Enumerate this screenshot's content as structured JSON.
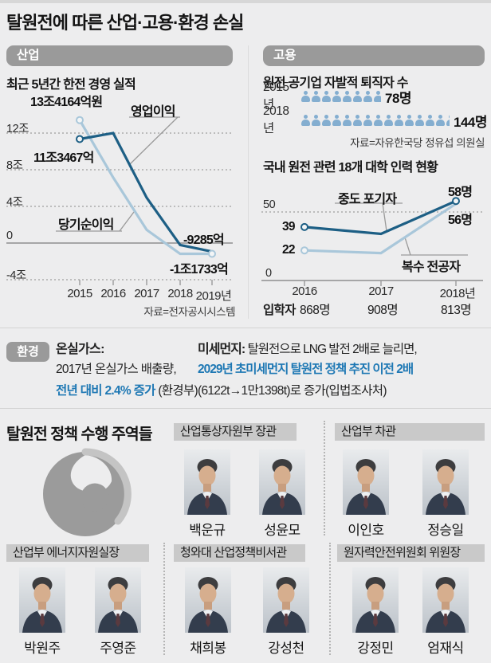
{
  "page": {
    "title": "탈원전에 따른 산업·고용·환경 손실"
  },
  "colors": {
    "accent_blue": "#1e78b4",
    "line_dark": "#1d5f85",
    "line_light": "#a9c7da",
    "pictogram_blue": "#84aed0",
    "section_bar_gray": "#9a9a9a"
  },
  "industry": {
    "section_label": "산업",
    "chart_title": "최근 5년간 한전 경영 실적",
    "y_labels": [
      "12조",
      "8조",
      "4조",
      "0",
      "-4조"
    ],
    "x_labels": [
      "2015",
      "2016",
      "2017",
      "2018",
      "2019년"
    ],
    "annotations": {
      "net_2015": "13조4164억원",
      "op_2015": "11조3467억",
      "op_label": "영업이익",
      "net_label": "당기순이익",
      "op_last": "-9285억",
      "net_last": "-1조1733억"
    },
    "source": "자료=전자공시시스템"
  },
  "employment": {
    "section_label": "고용",
    "retirees_title": "원전 공기업 자발적 퇴직자 수",
    "rows": [
      {
        "year": "2015년",
        "count": 78,
        "label": "78명"
      },
      {
        "year": "2018년",
        "count": 144,
        "label": "144명"
      }
    ],
    "source": "자료=자유한국당 정유섭 의원실",
    "univ_chart_title": "국내 원전 관련 18개 대학 인력 현황",
    "y_labels": [
      "50",
      "0"
    ],
    "x_labels": [
      "2016",
      "2017",
      "2018년"
    ],
    "annotations": {
      "dropout_label": "중도 포기자",
      "double_label": "복수 전공자",
      "dropout_2016": "39",
      "double_2016": "22",
      "dropout_2018": "58명",
      "double_2018": "56명"
    },
    "enrollees": {
      "label": "입학자",
      "values": [
        "868명",
        "908명",
        "813명"
      ]
    }
  },
  "environment": {
    "section_label": "환경",
    "greenhouse": {
      "title": "온실가스:",
      "line1": "2017년 온실가스 배출량,",
      "highlight": "전년 대비 2.4% 증가",
      "suffix": " (환경부)"
    },
    "fine_dust": {
      "title": "미세먼지:",
      "line1": " 탈원전으로 LNG 발전 2배로 늘리면,",
      "highlight": "2029년 초미세먼지 탈원전 정책 추진 이전 2배",
      "line3": "(6122t→1만1398t)로 증가(입법조사처)"
    }
  },
  "officials": {
    "title": "탈원전 정책 수행 주역들",
    "groups": [
      {
        "title": "산업통상자원부 장관",
        "members": [
          "백운규",
          "성윤모"
        ]
      },
      {
        "title": "산업부 차관",
        "members": [
          "이인호",
          "정승일"
        ]
      },
      {
        "title": "산업부 에너지자원실장",
        "members": [
          "박원주",
          "주영준"
        ]
      },
      {
        "title": "청와대 산업정책비서관",
        "members": [
          "채희봉",
          "강성천"
        ]
      },
      {
        "title": "원자력안전위원회 위원장",
        "members": [
          "강정민",
          "엄재식"
        ]
      }
    ]
  },
  "chart_data": [
    {
      "type": "line",
      "title": "최근 5년간 한전 경영 실적",
      "x": [
        "2015",
        "2016",
        "2017",
        "2018",
        "2019"
      ],
      "unit": "조원",
      "ylim": [
        -4,
        14
      ],
      "gridlines": [
        12,
        8,
        4,
        0,
        -4
      ],
      "series": [
        {
          "name": "영업이익",
          "color": "#1d5f85",
          "values": [
            11.3467,
            12.0,
            4.95,
            -0.21,
            -0.9285
          ],
          "markers": [
            0
          ]
        },
        {
          "name": "당기순이익",
          "color": "#a9c7da",
          "values": [
            13.4164,
            7.15,
            1.44,
            -1.17,
            -1.1733
          ],
          "markers": [
            0,
            4
          ]
        }
      ],
      "labeled_points": {
        "당기순이익 2015": "13조4164억원",
        "영업이익 2015": "11조3467억",
        "영업이익 2019": "-9285억",
        "당기순이익 2019": "-1조1733억"
      },
      "source": "전자공시시스템"
    },
    {
      "type": "line",
      "title": "국내 원전 관련 18개 대학 인력 현황",
      "x": [
        "2016",
        "2017",
        "2018"
      ],
      "unit": "명",
      "ylim": [
        0,
        60
      ],
      "gridlines": [
        50,
        0
      ],
      "series": [
        {
          "name": "중도 포기자",
          "color": "#1d5f85",
          "values": [
            39,
            34,
            58
          ],
          "markers": [
            0,
            2
          ]
        },
        {
          "name": "복수 전공자",
          "color": "#a9c7da",
          "values": [
            22,
            20,
            56
          ],
          "markers": [
            0
          ]
        }
      ],
      "labeled_points": {
        "중도 포기자 2016": 39,
        "복수 전공자 2016": 22,
        "중도 포기자 2018": "58명",
        "복수 전공자 2018": "56명"
      },
      "enrollees": {
        "label": "입학자",
        "values": [
          868,
          908,
          813
        ]
      }
    },
    {
      "type": "pictogram",
      "title": "원전 공기업 자발적 퇴직자 수",
      "categories": [
        "2015년",
        "2018년"
      ],
      "values": [
        78,
        144
      ],
      "unit": "명",
      "people_per_icon": 10,
      "source": "자유한국당 정유섭 의원실"
    }
  ]
}
